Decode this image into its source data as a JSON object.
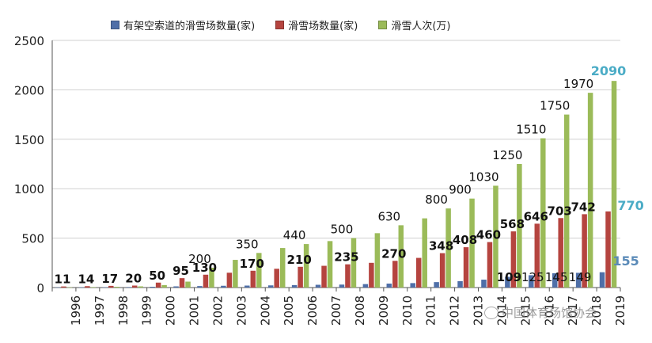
{
  "chart_data": {
    "type": "bar",
    "categories": [
      "1996",
      "1997",
      "1998",
      "1999",
      "2000",
      "2001",
      "2002",
      "2003",
      "2004",
      "2005",
      "2006",
      "2007",
      "2008",
      "2009",
      "2010",
      "2011",
      "2012",
      "2013",
      "2014",
      "2015",
      "2016",
      "2017",
      "2018",
      "2019"
    ],
    "series": [
      {
        "name": "有架空索道的滑雪场数量(家)",
        "color": "#4f6fa8",
        "values": [
          2,
          3,
          4,
          5,
          8,
          12,
          15,
          18,
          20,
          22,
          25,
          28,
          30,
          35,
          40,
          45,
          55,
          65,
          80,
          109,
          125,
          145,
          149,
          155
        ]
      },
      {
        "name": "滑雪场数量(家)",
        "color": "#b5443f",
        "values": [
          11,
          14,
          17,
          20,
          50,
          95,
          130,
          150,
          170,
          190,
          210,
          220,
          235,
          250,
          270,
          300,
          348,
          408,
          460,
          568,
          646,
          703,
          742,
          770
        ]
      },
      {
        "name": "滑雪人次(万)",
        "color": "#9bbb59",
        "values": [
          2,
          5,
          8,
          12,
          25,
          60,
          200,
          280,
          350,
          400,
          440,
          470,
          500,
          550,
          630,
          700,
          800,
          900,
          1030,
          1250,
          1510,
          1750,
          1970,
          2090
        ]
      }
    ],
    "ylim": [
      0,
      2500
    ],
    "yticks": [
      "0",
      "500",
      "1000",
      "1500",
      "2000",
      "2500"
    ],
    "legend_position": "top",
    "grid": true,
    "data_labels": {
      "resorts_bold": [
        {
          "i": 0,
          "text": "11"
        },
        {
          "i": 1,
          "text": "14"
        },
        {
          "i": 2,
          "text": "17"
        },
        {
          "i": 3,
          "text": "20"
        },
        {
          "i": 4,
          "text": "50"
        },
        {
          "i": 5,
          "text": "95"
        },
        {
          "i": 6,
          "text": "130"
        },
        {
          "i": 8,
          "text": "170"
        },
        {
          "i": 10,
          "text": "210"
        },
        {
          "i": 12,
          "text": "235"
        },
        {
          "i": 14,
          "text": "270"
        },
        {
          "i": 16,
          "text": "348"
        },
        {
          "i": 17,
          "text": "408"
        },
        {
          "i": 18,
          "text": "460"
        },
        {
          "i": 19,
          "text": "568"
        },
        {
          "i": 20,
          "text": "646"
        },
        {
          "i": 21,
          "text": "703"
        },
        {
          "i": 22,
          "text": "742"
        }
      ],
      "visits": [
        {
          "i": 6,
          "text": "200"
        },
        {
          "i": 8,
          "text": "350"
        },
        {
          "i": 10,
          "text": "440"
        },
        {
          "i": 12,
          "text": "500"
        },
        {
          "i": 14,
          "text": "630"
        },
        {
          "i": 16,
          "text": "800"
        },
        {
          "i": 17,
          "text": "900"
        },
        {
          "i": 18,
          "text": "1030"
        },
        {
          "i": 19,
          "text": "1250"
        },
        {
          "i": 20,
          "text": "1510"
        },
        {
          "i": 21,
          "text": "1750"
        },
        {
          "i": 22,
          "text": "1970"
        }
      ],
      "lifts": [
        {
          "i": 19,
          "text": "109",
          "bold": true
        },
        {
          "i": 20,
          "text": "125"
        },
        {
          "i": 21,
          "text": "145"
        },
        {
          "i": 22,
          "text": "149"
        }
      ],
      "highlight_2019": {
        "color": "#4bacc6",
        "visits": "2090",
        "resorts": "770",
        "lifts": "155"
      }
    }
  },
  "watermark": {
    "text": "中国体育场馆协会"
  }
}
